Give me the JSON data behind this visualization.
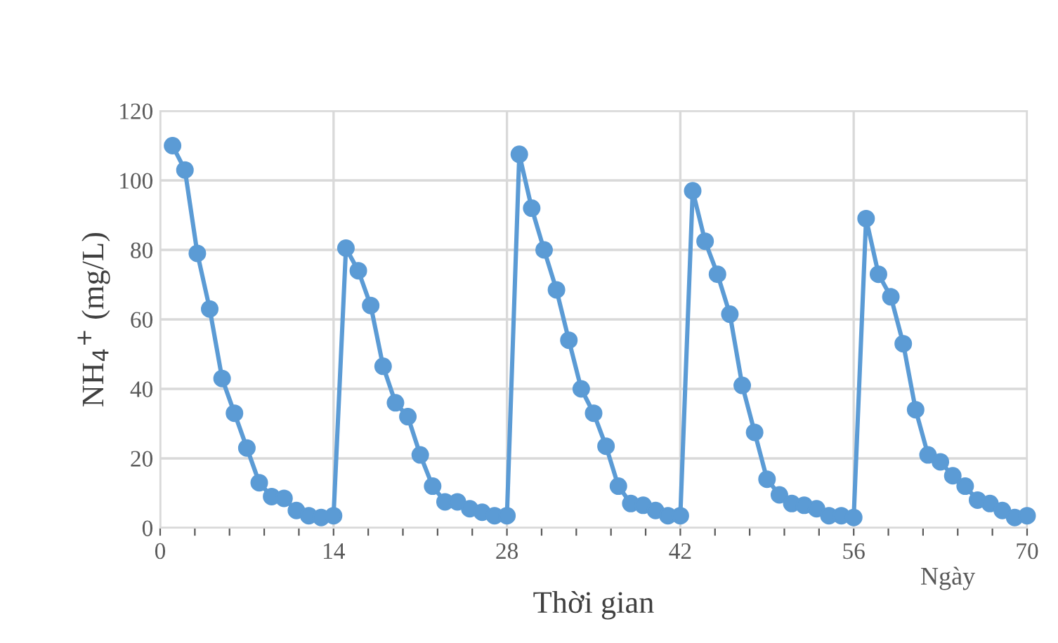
{
  "chart_data": {
    "type": "line",
    "xlabel": "Thời gian",
    "ylabel": "NH$_{4}$$^{+}$ (mg/L)",
    "annotations": [
      "Ngày"
    ],
    "x": [
      1,
      2,
      3,
      4,
      5,
      6,
      7,
      8,
      9,
      10,
      11,
      12,
      13,
      14,
      15,
      16,
      17,
      18,
      19,
      20,
      21,
      22,
      23,
      24,
      25,
      26,
      27,
      28,
      29,
      30,
      31,
      32,
      33,
      34,
      35,
      36,
      37,
      38,
      39,
      40,
      41,
      42,
      43,
      44,
      45,
      46,
      47,
      48,
      49,
      50,
      51,
      52,
      53,
      54,
      55,
      56,
      57,
      58,
      59,
      60,
      61,
      62,
      63,
      64,
      65,
      66,
      67,
      68,
      69,
      70
    ],
    "series": [
      {
        "color": "#5b9bd5",
        "values": [
          110,
          103,
          79,
          63,
          43,
          33,
          23,
          13,
          9,
          8.5,
          5,
          3.5,
          3,
          3.5,
          80.5,
          74,
          64,
          46.5,
          36,
          32,
          21,
          12,
          7.5,
          7.5,
          5.5,
          4.5,
          3.5,
          3.5,
          107.5,
          92,
          80,
          68.5,
          54,
          40,
          33,
          23.5,
          12,
          7,
          6.5,
          5,
          3.5,
          3.5,
          97,
          82.5,
          73,
          61.5,
          41,
          27.5,
          14,
          9.5,
          7,
          6.5,
          5.5,
          3.5,
          3.5,
          3,
          89,
          73,
          66.5,
          53,
          34,
          21,
          19,
          15,
          12,
          8,
          7,
          5,
          3,
          3.5
        ]
      }
    ],
    "xlim": [
      0,
      70
    ],
    "ylim": [
      0,
      120
    ],
    "xticks": [
      0,
      {
        "value": 2.8,
        "label": null
      },
      {
        "value": 5.6,
        "label": null
      },
      {
        "value": 8.4,
        "label": null
      },
      {
        "value": 11.2,
        "label": null
      },
      14,
      {
        "value": 16.8,
        "label": null
      },
      {
        "value": 19.6,
        "label": null
      },
      {
        "value": 22.4,
        "label": null
      },
      {
        "value": 25.2,
        "label": null
      },
      28,
      {
        "value": 30.8,
        "label": null
      },
      {
        "value": 33.6,
        "label": null
      },
      {
        "value": 36.4,
        "label": null
      },
      {
        "value": 39.2,
        "label": null
      },
      42,
      {
        "value": 44.8,
        "label": null
      },
      {
        "value": 47.6,
        "label": null
      },
      {
        "value": 50.4,
        "label": null
      },
      {
        "value": 53.2,
        "label": null
      },
      56,
      {
        "value": 58.8,
        "label": null
      },
      {
        "value": 61.6,
        "label": null
      },
      {
        "value": 64.4,
        "label": null
      },
      {
        "value": 67.2,
        "label": null
      },
      70
    ],
    "yticks": [
      0,
      20,
      40,
      60,
      80,
      100,
      120
    ],
    "grid": true,
    "marker": "circle",
    "line_style": "solid",
    "legend": false
  }
}
